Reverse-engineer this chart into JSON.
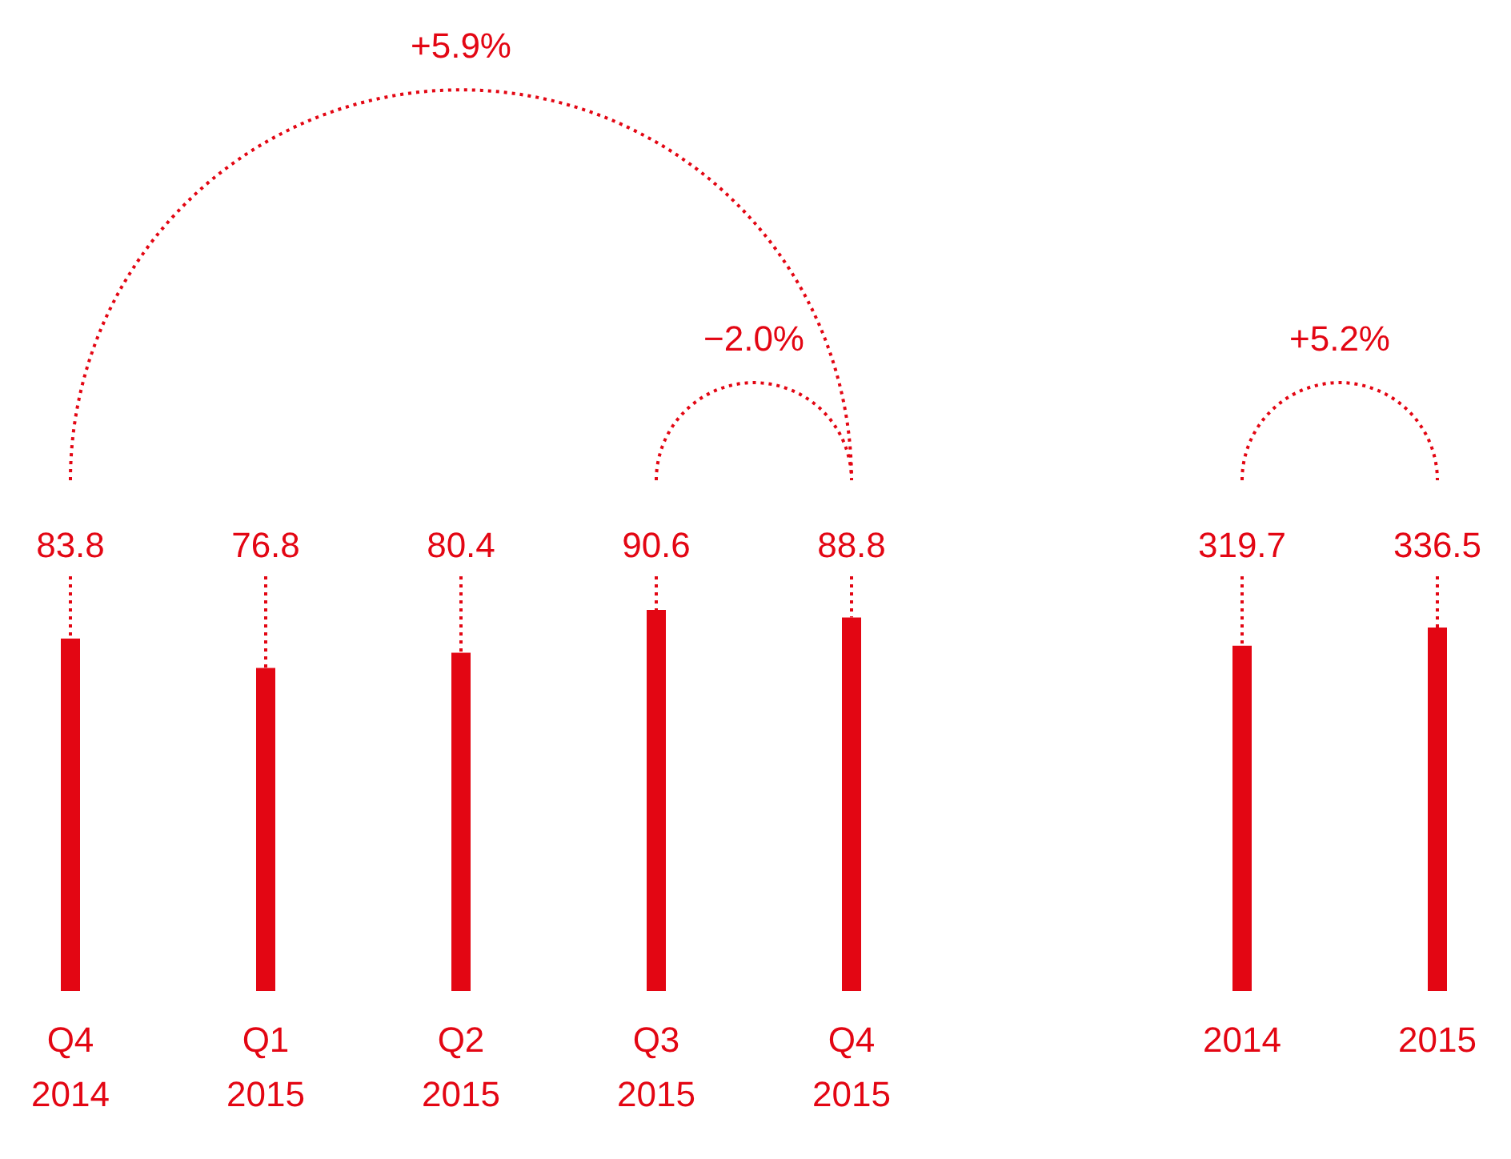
{
  "chart_data": [
    {
      "type": "bar",
      "categories": [
        "Q4 2014",
        "Q1 2015",
        "Q2 2015",
        "Q3 2015",
        "Q4 2015"
      ],
      "values": [
        83.8,
        76.8,
        80.4,
        90.6,
        88.8
      ],
      "color": "#e30613",
      "data_labels": true,
      "tick_labels": "x",
      "annotations": [
        "+5.9%",
        "−2.0%"
      ]
    },
    {
      "type": "bar",
      "categories": [
        "2014",
        "2015"
      ],
      "values": [
        319.7,
        336.5
      ],
      "color": "#e30613",
      "data_labels": true,
      "tick_labels": "x",
      "annotations": [
        "+5.2%"
      ]
    }
  ]
}
